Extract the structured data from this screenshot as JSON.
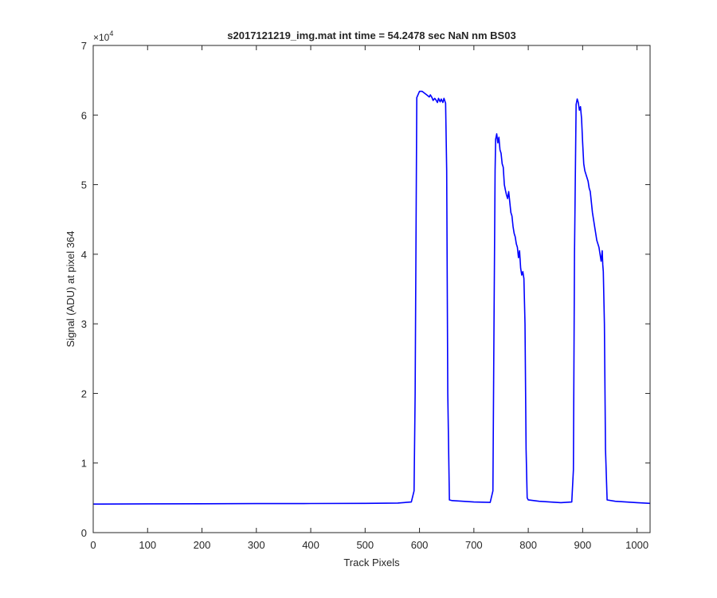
{
  "chart_data": {
    "type": "line",
    "title": "s2017121219_img.mat int time = 54.2478 sec  NaN nm BS03",
    "xlabel": "Track Pixels",
    "ylabel": "Signal (ADU) at pixel 364",
    "exponent_label": "×10",
    "exponent_power": "4",
    "xlim": [
      0,
      1024
    ],
    "ylim": [
      0,
      70000
    ],
    "x_ticks": [
      0,
      100,
      200,
      300,
      400,
      500,
      600,
      700,
      800,
      900,
      1000
    ],
    "x_tick_labels": [
      "0",
      "100",
      "200",
      "300",
      "400",
      "500",
      "600",
      "700",
      "800",
      "900",
      "1000"
    ],
    "y_ticks": [
      0,
      10000,
      20000,
      30000,
      40000,
      50000,
      60000,
      70000
    ],
    "y_tick_labels": [
      "0",
      "1",
      "2",
      "3",
      "4",
      "5",
      "6",
      "7"
    ],
    "grid": false,
    "line_color": "#0000ff",
    "series": [
      {
        "x": [
          0,
          100,
          200,
          300,
          400,
          500,
          560,
          585,
          590,
          592,
          595,
          600,
          605,
          610,
          615,
          618,
          620,
          623,
          625,
          628,
          630,
          633,
          635,
          638,
          640,
          643,
          645,
          648,
          650,
          652,
          655,
          660,
          700,
          730,
          735,
          737,
          739,
          740,
          742,
          744,
          746,
          748,
          750,
          752,
          754,
          756,
          758,
          760,
          762,
          764,
          766,
          768,
          770,
          772,
          774,
          776,
          778,
          780,
          782,
          784,
          786,
          788,
          790,
          792,
          794,
          796,
          798,
          800,
          820,
          860,
          880,
          883,
          885,
          888,
          890,
          892,
          894,
          896,
          898,
          900,
          902,
          904,
          906,
          908,
          910,
          912,
          914,
          916,
          918,
          920,
          922,
          924,
          926,
          928,
          930,
          932,
          934,
          936,
          937,
          938,
          940,
          942,
          945,
          960,
          1000,
          1024
        ],
        "y": [
          4100,
          4130,
          4150,
          4170,
          4180,
          4200,
          4250,
          4400,
          6000,
          20000,
          62500,
          63400,
          63400,
          63100,
          62800,
          62600,
          62900,
          62500,
          62100,
          62400,
          62200,
          61800,
          62400,
          61900,
          62300,
          61800,
          62400,
          61700,
          52000,
          20000,
          4700,
          4600,
          4400,
          4350,
          6000,
          30000,
          52000,
          56500,
          57300,
          56000,
          56800,
          55000,
          54500,
          53000,
          52500,
          50000,
          49200,
          48500,
          48000,
          49000,
          47500,
          46000,
          45500,
          44000,
          43000,
          42500,
          41500,
          41000,
          39500,
          40500,
          38000,
          37000,
          37500,
          36500,
          30000,
          12000,
          5000,
          4700,
          4500,
          4300,
          4400,
          9000,
          40000,
          61500,
          62300,
          61800,
          60700,
          61200,
          59500,
          56000,
          53000,
          52000,
          51500,
          51000,
          50500,
          49500,
          49000,
          47500,
          46000,
          45000,
          44000,
          43000,
          42000,
          41500,
          41000,
          40000,
          39000,
          40500,
          38500,
          37500,
          30000,
          12000,
          4700,
          4500,
          4300,
          4200
        ]
      }
    ]
  }
}
